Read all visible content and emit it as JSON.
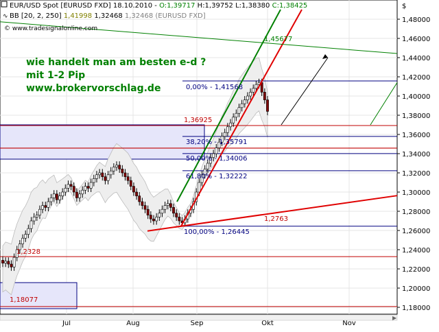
{
  "header": {
    "line1_prefix": "EUR/USD Spot [EURUSD FXD] 18.10.2010 - ",
    "open": "O:1,39717",
    "high": "H:1,39752",
    "low": "L:1,38380",
    "close": "C:1,38425",
    "line2_label": "BB [20, 2, 250]",
    "bb_upper": "1,41998",
    "bb_mid": "1,32468",
    "bb_lower": "1,41998",
    "bb_suffix": "1,32468 (EURUSD FXD]",
    "copyright": "© www.tradesignalonline.com"
  },
  "annotation": {
    "line1": "wie handelt man am besten e-d ?",
    "line2": "mit 1-2 Pip",
    "line3": "www.brokervorschlag.de"
  },
  "axis": {
    "currency_symbol": "$",
    "y_ticks": [
      "1,48000",
      "1,46000",
      "1,44000",
      "1,42000",
      "1,40000",
      "1,38000",
      "1,36000",
      "1,34000",
      "1,32000",
      "1,30000",
      "1,28000",
      "1,26000",
      "1,24000",
      "1,22000",
      "1,20000",
      "1,18000"
    ],
    "x_ticks": [
      "Jul",
      "Aug",
      "Sep",
      "Okt",
      "Nov"
    ]
  },
  "levels": {
    "fib_0": "0,00% - 1,41568",
    "fib_382": "38,20% - 1,35791",
    "fib_50": "50,00% - 1,34006",
    "fib_618": "61,80% - 1,32222",
    "fib_100": "100,00% - 1,26445",
    "level_136925": "1,36925",
    "level_12763": "1,2763",
    "level_green": "1,45677",
    "level_18077": "1,18077",
    "level_12328": "1,2328"
  },
  "colors": {
    "candle_up": "#ffffff",
    "candle_down": "#800000",
    "fib_line": "#000080",
    "support_red": "#e00000",
    "trend_green": "#008000",
    "annotation_green": "#008000",
    "grid": "#dddddd",
    "box_fill": "#e6e6fa"
  },
  "chart_data": {
    "type": "candlestick",
    "symbol": "EUR/USD Spot",
    "ylim": [
      1.17,
      1.5
    ],
    "x_ticks": [
      "Jul",
      "Aug",
      "Sep",
      "Okt",
      "Nov"
    ],
    "series": [
      {
        "name": "close",
        "values": [
          1.226,
          1.228,
          1.225,
          1.222,
          1.232,
          1.24,
          1.246,
          1.252,
          1.256,
          1.262,
          1.27,
          1.274,
          1.276,
          1.282,
          1.286,
          1.284,
          1.29,
          1.294,
          1.298,
          1.292,
          1.296,
          1.3,
          1.304,
          1.308,
          1.306,
          1.3,
          1.294,
          1.298,
          1.302,
          1.306,
          1.304,
          1.31,
          1.314,
          1.318,
          1.32,
          1.316,
          1.312,
          1.318,
          1.322,
          1.326,
          1.328,
          1.324,
          1.32,
          1.316,
          1.312,
          1.306,
          1.3,
          1.296,
          1.29,
          1.286,
          1.282,
          1.276,
          1.272,
          1.27,
          1.274,
          1.278,
          1.282,
          1.286,
          1.288,
          1.284,
          1.278,
          1.274,
          1.27,
          1.268,
          1.272,
          1.278,
          1.282,
          1.29,
          1.3,
          1.31,
          1.318,
          1.324,
          1.33,
          1.336,
          1.34,
          1.346,
          1.352,
          1.358,
          1.362,
          1.368,
          1.372,
          1.378,
          1.382,
          1.388,
          1.392,
          1.396,
          1.4,
          1.404,
          1.408,
          1.412,
          1.414,
          1.404,
          1.396,
          1.384
        ]
      }
    ],
    "fibonacci": [
      {
        "level": "0,00%",
        "value": 1.41568
      },
      {
        "level": "38,20%",
        "value": 1.35791
      },
      {
        "level": "50,00%",
        "value": 1.34006
      },
      {
        "level": "61,80%",
        "value": 1.32222
      },
      {
        "level": "100,00%",
        "value": 1.26445
      }
    ],
    "horizontal_levels": [
      1.36925,
      1.2328,
      1.18077,
      1.2763
    ],
    "bollinger": {
      "period": 20,
      "deviation": 2,
      "length": 250
    }
  }
}
